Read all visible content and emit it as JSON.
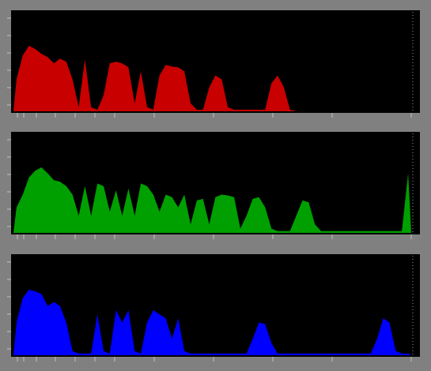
{
  "chart_data": [
    {
      "type": "area",
      "color": "#c80000",
      "values": [
        40,
        70,
        82,
        78,
        72,
        68,
        60,
        66,
        62,
        40,
        5,
        65,
        5,
        2,
        20,
        60,
        62,
        60,
        55,
        10,
        50,
        5,
        2,
        45,
        58,
        56,
        55,
        50,
        10,
        2,
        2,
        30,
        45,
        40,
        5,
        2,
        2,
        2,
        2,
        2,
        2,
        35,
        45,
        30,
        2,
        0,
        0,
        0,
        0,
        0,
        0,
        0,
        0,
        0,
        0,
        0,
        0,
        0,
        0,
        0,
        0,
        0,
        0,
        0
      ]
    },
    {
      "type": "area",
      "color": "#00a000",
      "values": [
        30,
        45,
        65,
        73,
        77,
        70,
        62,
        60,
        55,
        45,
        20,
        55,
        20,
        58,
        55,
        25,
        50,
        20,
        52,
        20,
        58,
        55,
        45,
        25,
        45,
        42,
        30,
        45,
        10,
        38,
        40,
        10,
        42,
        45,
        44,
        42,
        5,
        20,
        40,
        42,
        30,
        5,
        2,
        2,
        2,
        20,
        38,
        36,
        10,
        2,
        2,
        2,
        2,
        2,
        2,
        2,
        2,
        2,
        2,
        2,
        2,
        2,
        2,
        70
      ]
    },
    {
      "type": "area",
      "color": "#0000ff",
      "values": [
        40,
        70,
        80,
        78,
        75,
        60,
        65,
        60,
        40,
        5,
        2,
        2,
        2,
        50,
        5,
        2,
        55,
        40,
        55,
        5,
        2,
        40,
        55,
        50,
        45,
        20,
        45,
        5,
        2,
        2,
        2,
        2,
        2,
        2,
        2,
        2,
        2,
        2,
        20,
        40,
        38,
        15,
        2,
        2,
        2,
        2,
        2,
        2,
        2,
        2,
        2,
        2,
        2,
        2,
        2,
        2,
        2,
        2,
        20,
        45,
        40,
        5,
        2,
        2
      ]
    }
  ]
}
